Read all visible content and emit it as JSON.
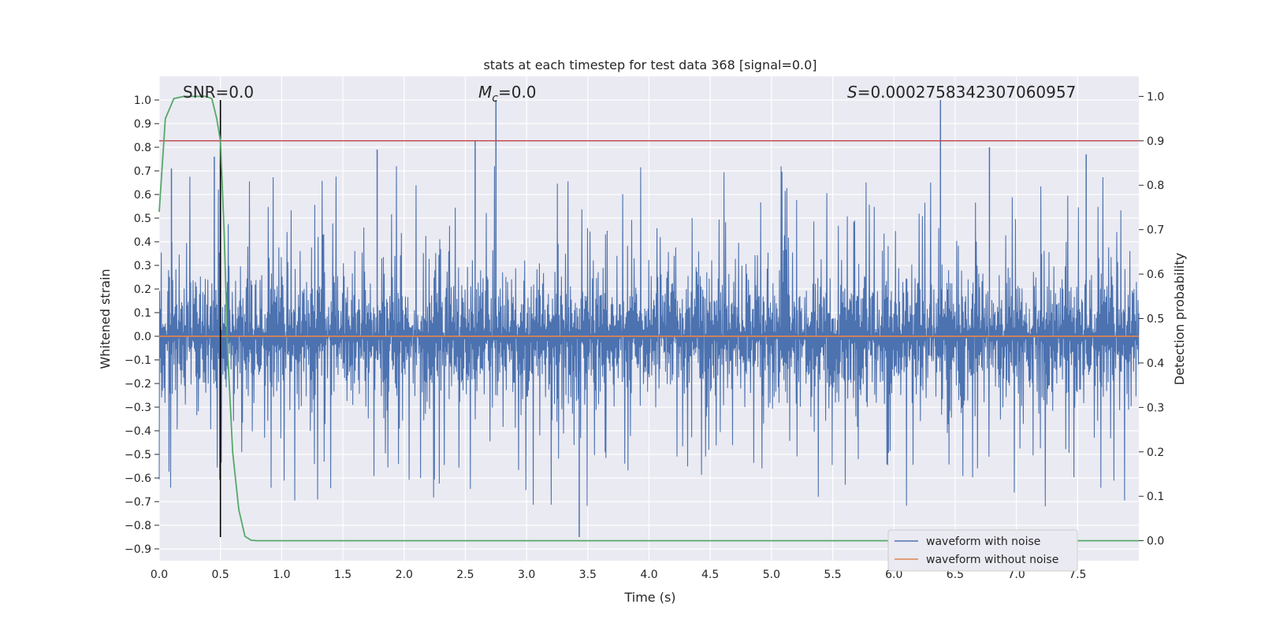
{
  "chart_data": {
    "type": "line",
    "title": "stats at each timestep for test data 368 [signal=0.0]",
    "xlabel": "Time (s)",
    "ylabel": "Whitened strain",
    "y2label": "Detection probability",
    "xlim": [
      0.0,
      8.0
    ],
    "ylim": [
      -0.95,
      1.1
    ],
    "y2lim": [
      -0.045,
      1.045
    ],
    "xticks": [
      "0.0",
      "0.5",
      "1.0",
      "1.5",
      "2.0",
      "2.5",
      "3.0",
      "3.5",
      "4.0",
      "4.5",
      "5.0",
      "5.5",
      "6.0",
      "6.5",
      "7.0",
      "7.5"
    ],
    "yticks": [
      "1.0",
      "0.9",
      "0.8",
      "0.7",
      "0.6",
      "0.5",
      "0.4",
      "0.3",
      "0.2",
      "0.1",
      "0.0",
      "−0.1",
      "−0.2",
      "−0.3",
      "−0.4",
      "−0.5",
      "−0.6",
      "−0.7",
      "−0.8",
      "−0.9"
    ],
    "y2ticks": [
      "1.0",
      "0.9",
      "0.8",
      "0.7",
      "0.6",
      "0.5",
      "0.4",
      "0.3",
      "0.2",
      "0.1",
      "0.0"
    ],
    "annotations": {
      "snr": "SNR=0.0",
      "mc_symbol": "M",
      "mc_sub": "c",
      "mc_value": "=0.0",
      "s_symbol": "S",
      "s_value": "=0.0002758342307060957"
    },
    "series": [
      {
        "name": "waveform with noise",
        "color": "#4c72b0",
        "description_range": [
          -0.85,
          1.0
        ],
        "peaks": [
          [
            0.1,
            0.71
          ],
          [
            0.45,
            0.76
          ],
          [
            0.5,
            0.74
          ],
          [
            1.78,
            0.79
          ],
          [
            2.58,
            0.83
          ],
          [
            2.75,
            1.0
          ],
          [
            3.43,
            -0.85
          ],
          [
            6.38,
            1.0
          ],
          [
            6.78,
            0.8
          ],
          [
            7.57,
            0.77
          ]
        ]
      },
      {
        "name": "waveform without noise",
        "color": "#dd8452",
        "values_constant": 0.0
      },
      {
        "name": "detection probability",
        "color": "#55a868",
        "axis": "right",
        "x": [
          0.0,
          0.05,
          0.12,
          0.2,
          0.3,
          0.38,
          0.43,
          0.47,
          0.5,
          0.53,
          0.56,
          0.6,
          0.65,
          0.7,
          0.75,
          0.8,
          1.0,
          2.0,
          4.0,
          6.0,
          8.0
        ],
        "y": [
          0.74,
          0.95,
          0.995,
          1.0,
          1.0,
          1.0,
          0.995,
          0.95,
          0.9,
          0.7,
          0.42,
          0.2,
          0.07,
          0.01,
          0.001,
          0.0,
          0.0,
          0.0,
          0.0,
          0.0,
          0.0
        ]
      }
    ],
    "threshold": {
      "value": 0.9,
      "axis": "right",
      "color": "#c44e52"
    },
    "marker_line": {
      "x": 0.5,
      "y_from": -0.85,
      "y_to": 1.0,
      "color": "#000000"
    },
    "legend": {
      "placement": "lower-right",
      "entries": [
        "waveform with noise",
        "waveform without noise"
      ]
    },
    "grid": true,
    "background": "#eaeaf2"
  }
}
